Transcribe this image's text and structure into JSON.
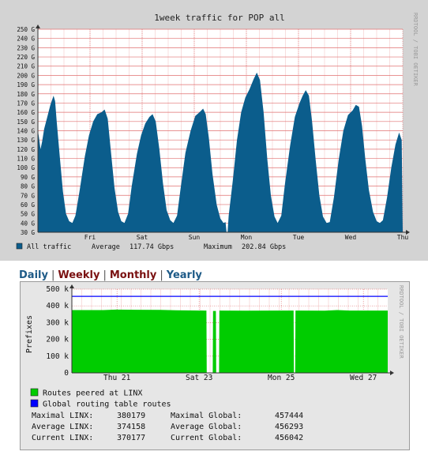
{
  "chart_data": [
    {
      "type": "area",
      "title": "1week traffic for POP all",
      "side_label": "RRDTOOL / TOBI OETIKER",
      "y_unit": "G",
      "ylim": [
        30,
        250
      ],
      "ticks": [
        {
          "v": 30,
          "label": "30 G"
        },
        {
          "v": 40,
          "label": "40 G"
        },
        {
          "v": 50,
          "label": "50 G"
        },
        {
          "v": 60,
          "label": "60 G"
        },
        {
          "v": 70,
          "label": "70 G"
        },
        {
          "v": 80,
          "label": "80 G"
        },
        {
          "v": 90,
          "label": "90 G"
        },
        {
          "v": 100,
          "label": "100 G"
        },
        {
          "v": 110,
          "label": "110 G"
        },
        {
          "v": 120,
          "label": "120 G"
        },
        {
          "v": 130,
          "label": "130 G"
        },
        {
          "v": 140,
          "label": "140 G"
        },
        {
          "v": 150,
          "label": "150 G"
        },
        {
          "v": 160,
          "label": "160 G"
        },
        {
          "v": 170,
          "label": "170 G"
        },
        {
          "v": 180,
          "label": "180 G"
        },
        {
          "v": 190,
          "label": "190 G"
        },
        {
          "v": 200,
          "label": "200 G"
        },
        {
          "v": 210,
          "label": "210 G"
        },
        {
          "v": 220,
          "label": "220 G"
        },
        {
          "v": 230,
          "label": "230 G"
        },
        {
          "v": 240,
          "label": "240 G"
        },
        {
          "v": 250,
          "label": "250 G"
        }
      ],
      "x_range": [
        0,
        7
      ],
      "x_ticks": [
        {
          "x": 1,
          "label": "Fri"
        },
        {
          "x": 2,
          "label": "Sat"
        },
        {
          "x": 3,
          "label": "Sun"
        },
        {
          "x": 4,
          "label": "Mon"
        },
        {
          "x": 5,
          "label": "Tue"
        },
        {
          "x": 6,
          "label": "Wed"
        },
        {
          "x": 7,
          "label": "Thu"
        }
      ],
      "series": [
        {
          "name": "All traffic",
          "color": "#0b5d8c",
          "points": [
            [
              0,
              140
            ],
            [
              0.02,
              133
            ],
            [
              0.05,
              120
            ],
            [
              0.08,
              128
            ],
            [
              0.12,
              142
            ],
            [
              0.18,
              155
            ],
            [
              0.24,
              168
            ],
            [
              0.3,
              178
            ],
            [
              0.33,
              172
            ],
            [
              0.36,
              150
            ],
            [
              0.42,
              112
            ],
            [
              0.48,
              74
            ],
            [
              0.54,
              50
            ],
            [
              0.6,
              42
            ],
            [
              0.66,
              40
            ],
            [
              0.72,
              48
            ],
            [
              0.8,
              75
            ],
            [
              0.9,
              112
            ],
            [
              0.98,
              135
            ],
            [
              1.06,
              150
            ],
            [
              1.14,
              158
            ],
            [
              1.22,
              160
            ],
            [
              1.28,
              163
            ],
            [
              1.34,
              153
            ],
            [
              1.4,
              118
            ],
            [
              1.47,
              78
            ],
            [
              1.54,
              52
            ],
            [
              1.6,
              42
            ],
            [
              1.66,
              40
            ],
            [
              1.73,
              50
            ],
            [
              1.8,
              80
            ],
            [
              1.9,
              115
            ],
            [
              1.98,
              135
            ],
            [
              2.06,
              148
            ],
            [
              2.14,
              155
            ],
            [
              2.2,
              158
            ],
            [
              2.26,
              150
            ],
            [
              2.33,
              120
            ],
            [
              2.4,
              83
            ],
            [
              2.47,
              54
            ],
            [
              2.54,
              43
            ],
            [
              2.6,
              40
            ],
            [
              2.67,
              48
            ],
            [
              2.74,
              78
            ],
            [
              2.83,
              116
            ],
            [
              2.93,
              140
            ],
            [
              3.02,
              156
            ],
            [
              3.1,
              160
            ],
            [
              3.17,
              164
            ],
            [
              3.22,
              158
            ],
            [
              3.28,
              132
            ],
            [
              3.35,
              93
            ],
            [
              3.43,
              60
            ],
            [
              3.5,
              45
            ],
            [
              3.56,
              40
            ],
            [
              3.6,
              41
            ],
            [
              3.62,
              30
            ],
            [
              3.64,
              30
            ],
            [
              3.66,
              48
            ],
            [
              3.74,
              86
            ],
            [
              3.82,
              130
            ],
            [
              3.9,
              160
            ],
            [
              3.98,
              176
            ],
            [
              4.06,
              185
            ],
            [
              4.14,
              196
            ],
            [
              4.2,
              203
            ],
            [
              4.26,
              195
            ],
            [
              4.33,
              160
            ],
            [
              4.4,
              110
            ],
            [
              4.47,
              70
            ],
            [
              4.54,
              47
            ],
            [
              4.6,
              40
            ],
            [
              4.67,
              48
            ],
            [
              4.74,
              82
            ],
            [
              4.84,
              124
            ],
            [
              4.93,
              155
            ],
            [
              5.02,
              170
            ],
            [
              5.08,
              178
            ],
            [
              5.14,
              184
            ],
            [
              5.2,
              178
            ],
            [
              5.26,
              150
            ],
            [
              5.33,
              108
            ],
            [
              5.4,
              70
            ],
            [
              5.47,
              47
            ],
            [
              5.54,
              40
            ],
            [
              5.6,
              41
            ],
            [
              5.68,
              68
            ],
            [
              5.77,
              108
            ],
            [
              5.86,
              140
            ],
            [
              5.95,
              157
            ],
            [
              6.04,
              162
            ],
            [
              6.1,
              168
            ],
            [
              6.16,
              166
            ],
            [
              6.22,
              145
            ],
            [
              6.28,
              110
            ],
            [
              6.35,
              76
            ],
            [
              6.43,
              52
            ],
            [
              6.5,
              42
            ],
            [
              6.56,
              40
            ],
            [
              6.62,
              43
            ],
            [
              6.7,
              68
            ],
            [
              6.78,
              100
            ],
            [
              6.86,
              125
            ],
            [
              6.93,
              138
            ],
            [
              6.98,
              130
            ],
            [
              7,
              30
            ]
          ]
        }
      ],
      "legend": {
        "series_label": "All traffic",
        "average_label": "Average",
        "average_value": "117.74 Gbps",
        "maximum_label": "Maximum",
        "maximum_value": "202.84 Gbps"
      }
    },
    {
      "type": "area",
      "side_label": "RRDTOOL / TOBI OETIKER",
      "ylabel": "Prefixes",
      "ylim": [
        0,
        500
      ],
      "ticks": [
        {
          "v": 0,
          "label": "0"
        },
        {
          "v": 100,
          "label": "100 k"
        },
        {
          "v": 200,
          "label": "200 k"
        },
        {
          "v": 300,
          "label": "300 k"
        },
        {
          "v": 400,
          "label": "400 k"
        },
        {
          "v": 500,
          "label": "500 k"
        }
      ],
      "x_range": [
        0,
        100
      ],
      "x_ticks": [
        {
          "x": 14.3,
          "label": "Thu 21"
        },
        {
          "x": 40.3,
          "label": "Sat 23"
        },
        {
          "x": 66.3,
          "label": "Mon 25"
        },
        {
          "x": 92.3,
          "label": "Wed 27"
        }
      ],
      "series": [
        {
          "name": "Routes peered at LINX",
          "color": "#00cc00",
          "points": [
            [
              0,
              375
            ],
            [
              10,
              375
            ],
            [
              14,
              378
            ],
            [
              20,
              377
            ],
            [
              28,
              376
            ],
            [
              33,
              374
            ],
            [
              36,
              373
            ],
            [
              42,
              372
            ],
            [
              42.6,
              372
            ],
            [
              42.7,
              0
            ],
            [
              44.6,
              0
            ],
            [
              44.7,
              370
            ],
            [
              45.6,
              370
            ],
            [
              45.7,
              0
            ],
            [
              46.6,
              0
            ],
            [
              46.7,
              372
            ],
            [
              55,
              371
            ],
            [
              65,
              372
            ],
            [
              70.2,
              372
            ],
            [
              70.3,
              0
            ],
            [
              70.7,
              0
            ],
            [
              70.8,
              372
            ],
            [
              80,
              371
            ],
            [
              84,
              375
            ],
            [
              88,
              372
            ],
            [
              100,
              372
            ]
          ]
        },
        {
          "name": "Global routing table routes",
          "color": "#0000ff",
          "points": [
            [
              0,
              457
            ],
            [
              100,
              457
            ]
          ]
        }
      ],
      "legend": [
        {
          "label": "Routes peered at LINX",
          "color": "#00cc00"
        },
        {
          "label": "Global routing table routes",
          "color": "#0000ff"
        }
      ],
      "stats": [
        {
          "label1": "Maximal LINX:",
          "value1": "380179",
          "label2": "Maximal Global:",
          "value2": "457444"
        },
        {
          "label1": "Average LINX:",
          "value1": "374158",
          "label2": "Average Global:",
          "value2": "456293"
        },
        {
          "label1": "Current LINX:",
          "value1": "370177",
          "label2": "Current Global:",
          "value2": "456042"
        }
      ]
    }
  ],
  "tabs": [
    {
      "label": "Daily",
      "color": "#1d5a87"
    },
    {
      "label": "Weekly",
      "color": "#7a1111"
    },
    {
      "label": "Monthly",
      "color": "#7a1111"
    },
    {
      "label": "Yearly",
      "color": "#1d5a87"
    }
  ],
  "tab_separator": "|",
  "colors": {
    "panel_bg": "#d3d3d3",
    "plot_bg": "#ffffff",
    "minor_grid": "#f3c9c9",
    "major_grid": "#e07070"
  }
}
